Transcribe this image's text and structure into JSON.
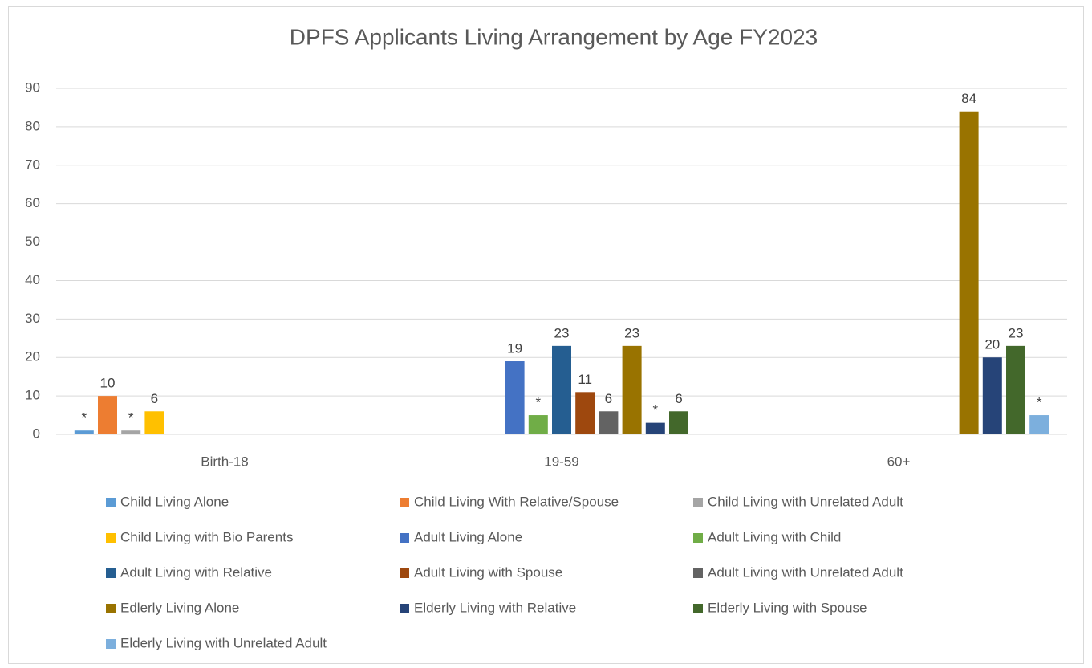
{
  "chart_data": {
    "type": "bar",
    "title": "DPFS Applicants Living Arrangement by Age FY2023",
    "categories": [
      "Birth-18",
      "19-59",
      "60+"
    ],
    "ylim": [
      0,
      90
    ],
    "yticks": [
      0,
      10,
      20,
      30,
      40,
      50,
      60,
      70,
      80,
      90
    ],
    "grid": true,
    "series": [
      {
        "name": "Child Living Alone",
        "color": "#5b9bd5",
        "values": [
          1,
          null,
          null
        ],
        "value_labels": [
          "*",
          null,
          null
        ]
      },
      {
        "name": "Child Living With Relative/Spouse",
        "color": "#ed7d31",
        "values": [
          10,
          null,
          null
        ]
      },
      {
        "name": "Child Living with Unrelated Adult",
        "color": "#a5a5a5",
        "values": [
          1,
          null,
          null
        ],
        "value_labels": [
          "*",
          null,
          null
        ]
      },
      {
        "name": "Child Living with Bio Parents",
        "color": "#ffc000",
        "values": [
          6,
          null,
          null
        ]
      },
      {
        "name": "Adult Living Alone",
        "color": "#4472c4",
        "values": [
          null,
          19,
          null
        ]
      },
      {
        "name": "Adult Living with Child",
        "color": "#70ad47",
        "values": [
          null,
          5,
          null
        ],
        "value_labels": [
          null,
          "*",
          null
        ]
      },
      {
        "name": "Adult Living with Relative",
        "color": "#255e91",
        "values": [
          null,
          23,
          null
        ]
      },
      {
        "name": "Adult Living with Spouse",
        "color": "#9e480e",
        "values": [
          null,
          11,
          null
        ]
      },
      {
        "name": "Adult Living with Unrelated Adult",
        "color": "#636363",
        "values": [
          null,
          6,
          null
        ]
      },
      {
        "name": "Edlerly Living Alone",
        "color": "#997300",
        "values": [
          null,
          23,
          84
        ]
      },
      {
        "name": "Elderly Living with Relative",
        "color": "#264478",
        "values": [
          null,
          3,
          20
        ],
        "value_labels": [
          null,
          "*",
          null
        ]
      },
      {
        "name": "Elderly Living with Spouse",
        "color": "#43682b",
        "values": [
          null,
          6,
          23
        ]
      },
      {
        "name": "Elderly Living with Unrelated Adult",
        "color": "#7cafdd",
        "values": [
          null,
          null,
          5
        ],
        "value_labels": [
          null,
          null,
          "*"
        ]
      }
    ]
  }
}
